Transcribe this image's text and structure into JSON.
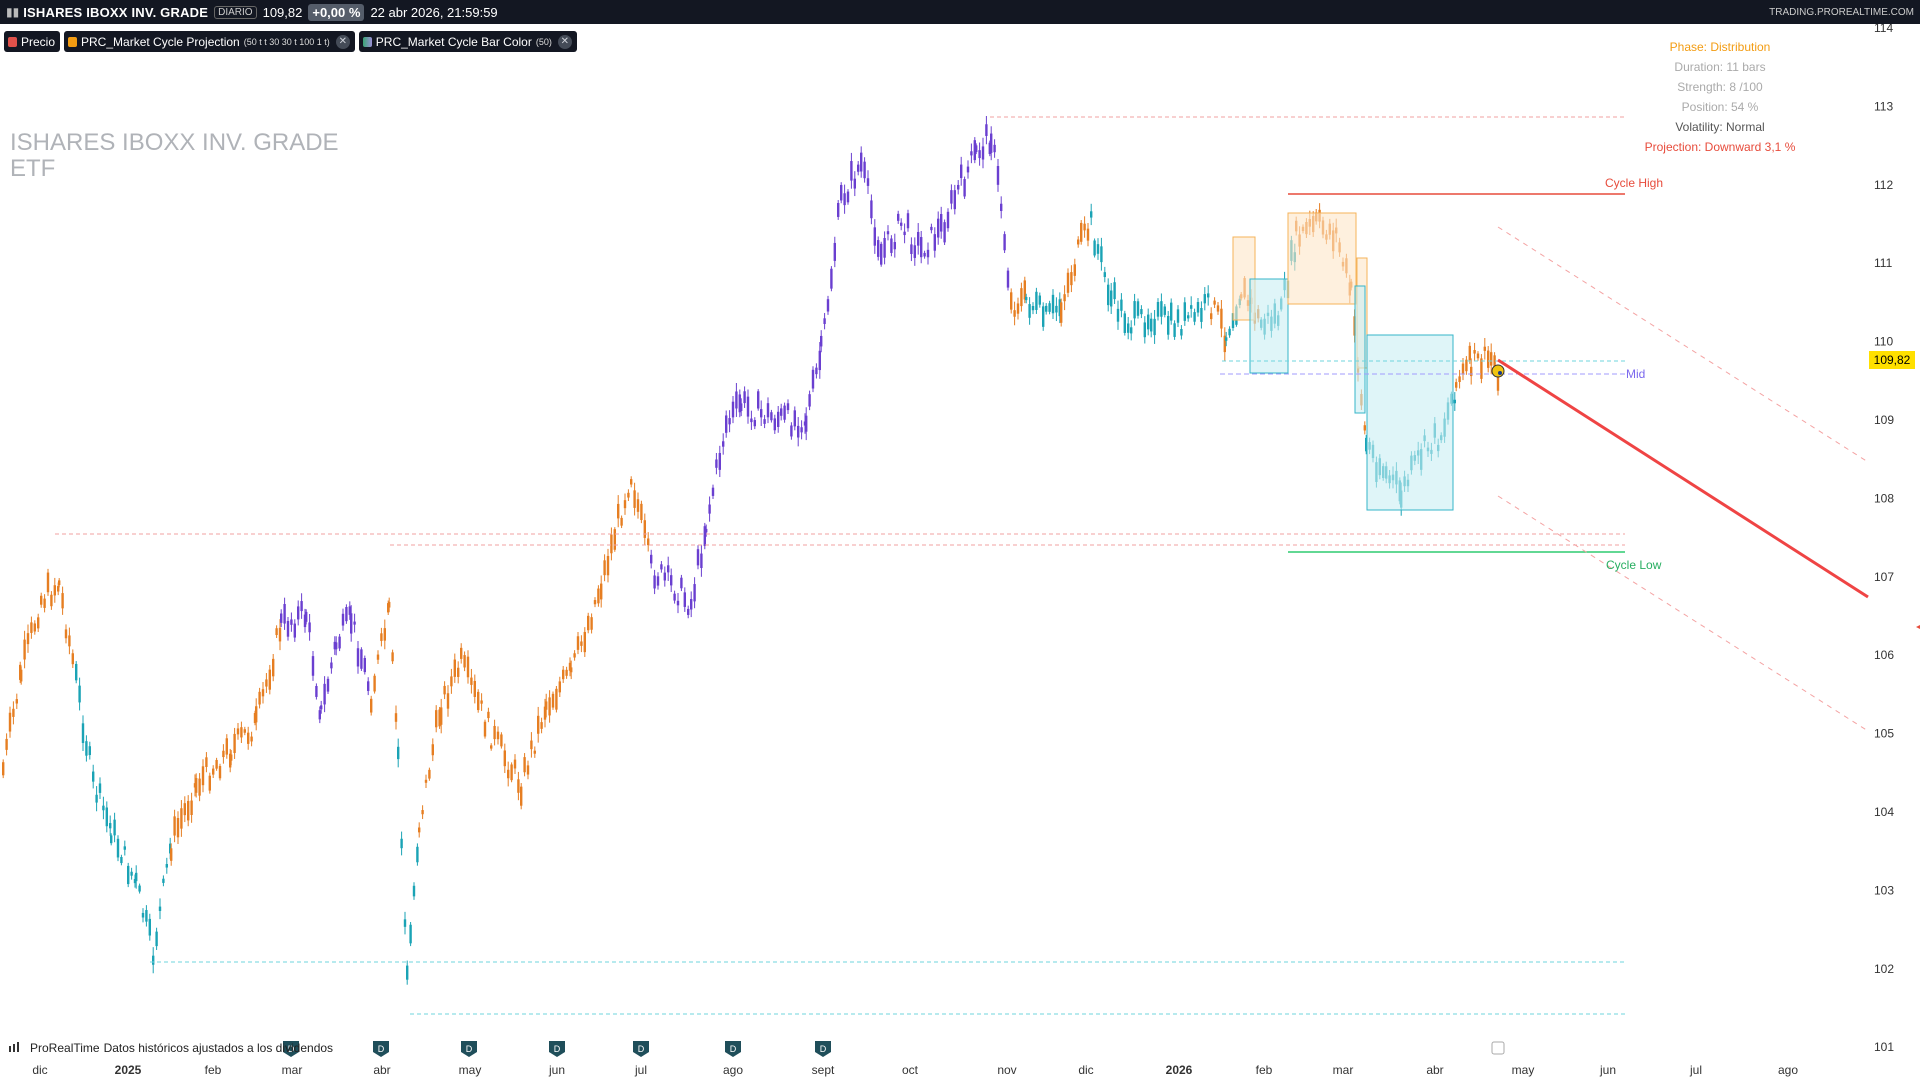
{
  "toolbar": {
    "symbol": "ISHARES IBOXX  INV. GRADE",
    "timeframe": "DIARIO",
    "price": "109,82",
    "change": "+0,00 %",
    "datetime": "22 abr 2026, 21:59:59",
    "site": "TRADING.PROREALTIME.COM"
  },
  "legends": [
    {
      "label": "Precio",
      "params": "",
      "color": "#e0514a"
    },
    {
      "label": "PRC_Market Cycle Projection",
      "params": "(50 t t 30 30 t 100 1 t)",
      "color": "#f39c12"
    },
    {
      "label": "PRC_Market Cycle Bar Color",
      "params": "(50)",
      "color": "#3aa676"
    }
  ],
  "watermark": {
    "line1": "ISHARES IBOXX  INV. GRADE",
    "line2": "ETF"
  },
  "info_panel": {
    "phase": "Phase: Distribution",
    "duration": "Duration: 11  bars",
    "strength": "Strength: 8 /100",
    "position": "Position: 54 %",
    "volatility": "Volatility: Normal",
    "projection": "Projection: Downward 3,1 %"
  },
  "labels": {
    "cycle_high": "Cycle High",
    "mid": "Mid",
    "cycle_low": "Cycle Low"
  },
  "price_axis": {
    "ticks": [
      "114",
      "113",
      "112",
      "111",
      "110",
      "109",
      "108",
      "107",
      "106",
      "105",
      "104",
      "103",
      "102",
      "101"
    ],
    "current_price_tag": "109,82"
  },
  "time_axis": {
    "labels": [
      "dic",
      "2025",
      "feb",
      "mar",
      "abr",
      "may",
      "jun",
      "jul",
      "ago",
      "sept",
      "oct",
      "nov",
      "dic",
      "2026",
      "feb",
      "mar",
      "abr",
      "may",
      "jun",
      "jul",
      "ago"
    ]
  },
  "dividend_marker": "D",
  "footer": {
    "brand": "ProRealTime",
    "note": "Datos históricos ajustados a los dividendos"
  },
  "colors": {
    "bull_purple": "#6a3fd0",
    "orange": "#e67e22",
    "teal": "#1aa3b5",
    "cycle_high": "#e74c3c",
    "cycle_low": "#2ecc71",
    "mid": "#7b68ee",
    "price_tag": "#ffe000"
  }
}
